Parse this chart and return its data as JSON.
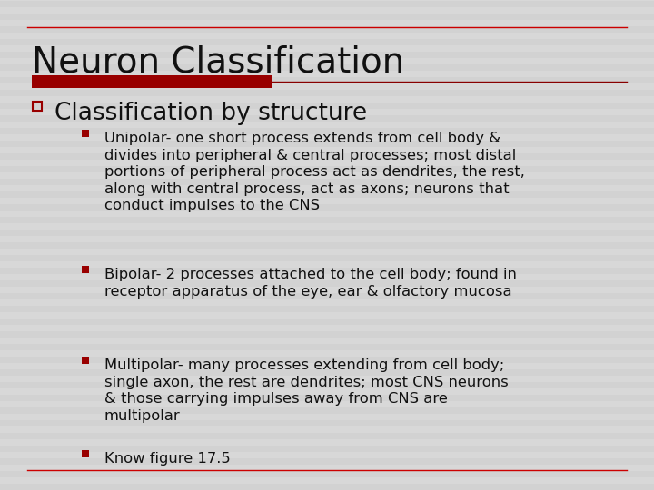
{
  "title": "Neuron Classification",
  "title_fontsize": 28,
  "title_color": "#111111",
  "bg_color": "#d8d8d8",
  "stripe_color": "#cccccc",
  "red_bar_color": "#990000",
  "border_line_color": "#cc0000",
  "level1_bullet_color": "#990000",
  "level2_bullet_color": "#990000",
  "level1_text": "Classification by structure",
  "level1_fontsize": 19,
  "level2_fontsize": 11.8,
  "bullet2_items": [
    "Unipolar- one short process extends from cell body &\ndivides into peripheral & central processes; most distal\nportions of peripheral process act as dendrites, the rest,\nalong with central process, act as axons; neurons that\nconduct impulses to the CNS",
    "Bipolar- 2 processes attached to the cell body; found in\nreceptor apparatus of the eye, ear & olfactory mucosa",
    "Multipolar- many processes extending from cell body;\nsingle axon, the rest are dendrites; most CNS neurons\n& those carrying impulses away from CNS are\nmultipolar",
    "Know figure 17.5"
  ]
}
